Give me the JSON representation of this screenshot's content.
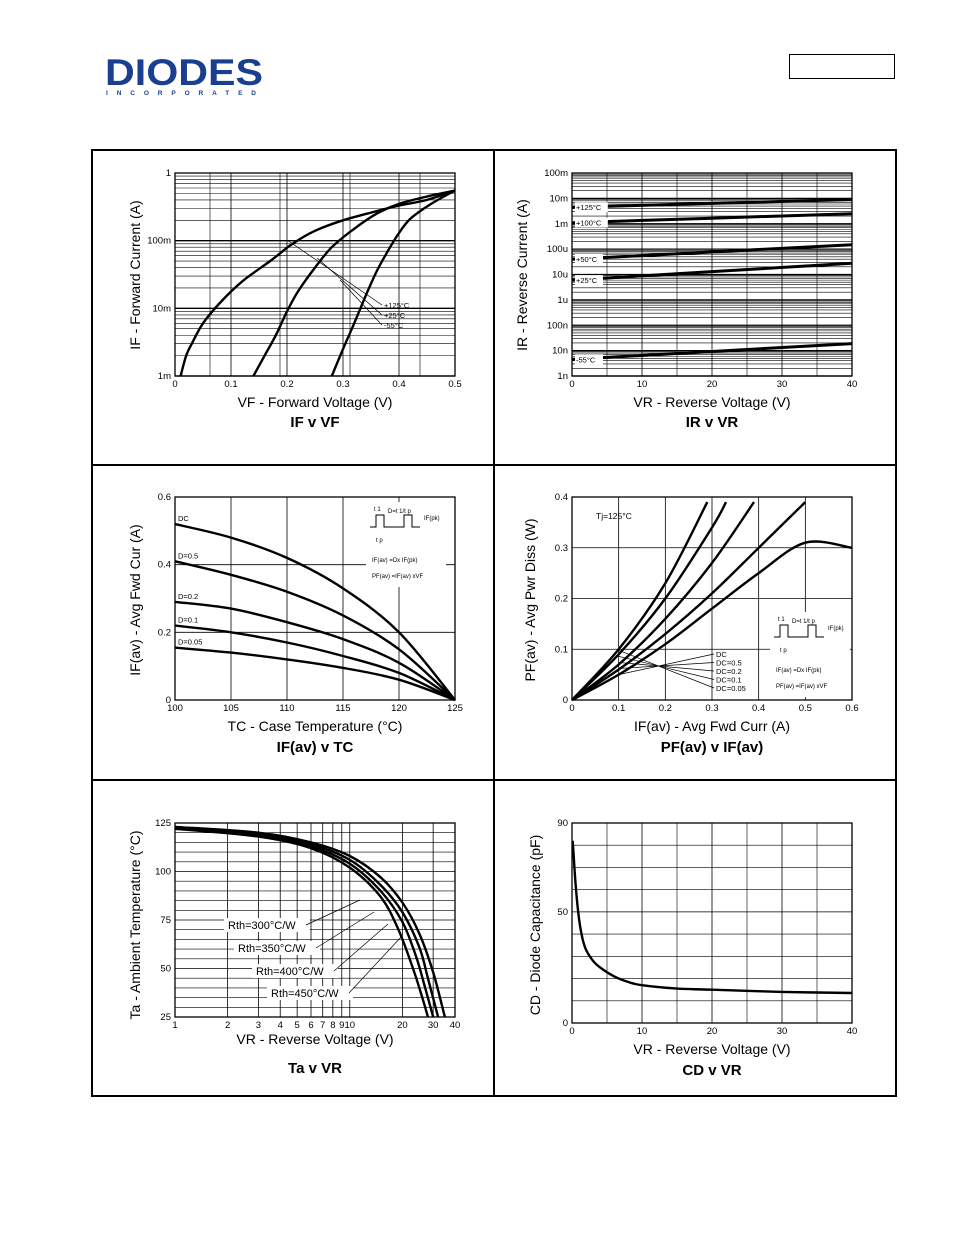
{
  "logo": {
    "brand": "DIODES",
    "sub": "INCORPORATED"
  },
  "colors": {
    "ink": "#000000",
    "brand": "#1b3f8f"
  },
  "chart_data": [
    {
      "type": "line",
      "id": "if_vf",
      "xlabel": "VF - Forward Voltage (V)",
      "ylabel": "IF - Forward Current (A)",
      "caption": "IF v VF",
      "xscale": "linear",
      "yscale": "log",
      "xlim": [
        0,
        0.5
      ],
      "ylim": [
        0.001,
        1
      ],
      "xticks": [
        0,
        0.1,
        0.2,
        0.3,
        0.4,
        0.5
      ],
      "xtick_labels": [
        "0",
        "0.1",
        "0.2",
        "0.3",
        "0.4",
        "0.5"
      ],
      "yticks": [
        0.001,
        0.01,
        0.1,
        1
      ],
      "ytick_labels": [
        "1m",
        "10m",
        "100m",
        "1"
      ],
      "legend_labels": [
        "+125°C",
        "+25°C",
        "-55°C"
      ],
      "series": [
        {
          "name": "+125°C",
          "points": [
            [
              0.01,
              0.001
            ],
            [
              0.02,
              0.002
            ],
            [
              0.03,
              0.003
            ],
            [
              0.05,
              0.006
            ],
            [
              0.08,
              0.012
            ],
            [
              0.12,
              0.025
            ],
            [
              0.17,
              0.05
            ],
            [
              0.21,
              0.09
            ],
            [
              0.25,
              0.14
            ],
            [
              0.3,
              0.2
            ],
            [
              0.35,
              0.26
            ],
            [
              0.4,
              0.33
            ],
            [
              0.45,
              0.4
            ],
            [
              0.5,
              0.55
            ]
          ]
        },
        {
          "name": "+25°C",
          "points": [
            [
              0.14,
              0.001
            ],
            [
              0.16,
              0.002
            ],
            [
              0.18,
              0.004
            ],
            [
              0.2,
              0.009
            ],
            [
              0.22,
              0.018
            ],
            [
              0.25,
              0.04
            ],
            [
              0.28,
              0.08
            ],
            [
              0.32,
              0.15
            ],
            [
              0.36,
              0.25
            ],
            [
              0.4,
              0.35
            ],
            [
              0.45,
              0.45
            ],
            [
              0.5,
              0.55
            ]
          ]
        },
        {
          "name": "-55°C",
          "points": [
            [
              0.28,
              0.001
            ],
            [
              0.3,
              0.0025
            ],
            [
              0.32,
              0.006
            ],
            [
              0.34,
              0.015
            ],
            [
              0.36,
              0.035
            ],
            [
              0.38,
              0.07
            ],
            [
              0.4,
              0.13
            ],
            [
              0.42,
              0.21
            ],
            [
              0.45,
              0.32
            ],
            [
              0.48,
              0.45
            ],
            [
              0.5,
              0.55
            ]
          ]
        }
      ]
    },
    {
      "type": "line",
      "id": "ir_vr",
      "xlabel": "VR - Reverse Voltage (V)",
      "ylabel": "IR - Reverse Current (A)",
      "caption": "IR v VR",
      "xscale": "linear",
      "yscale": "log",
      "xlim": [
        0,
        40
      ],
      "ylim": [
        1e-09,
        0.1
      ],
      "xticks": [
        0,
        10,
        20,
        30,
        40
      ],
      "xtick_labels": [
        "0",
        "10",
        "20",
        "30",
        "40"
      ],
      "yticks": [
        1e-09,
        1e-08,
        1e-07,
        1e-06,
        1e-05,
        0.0001,
        0.001,
        0.01,
        0.1
      ],
      "ytick_labels": [
        "1n",
        "10n",
        "100n",
        "1u",
        "10u",
        "100u",
        "1m",
        "10m",
        "100m"
      ],
      "series": [
        {
          "name": "+125°C",
          "points": [
            [
              0,
              0.0045
            ],
            [
              40,
              0.009
            ]
          ]
        },
        {
          "name": "+100°C",
          "points": [
            [
              0,
              0.0011
            ],
            [
              40,
              0.0025
            ]
          ]
        },
        {
          "name": "+50°C",
          "points": [
            [
              0,
              4e-05
            ],
            [
              40,
              0.00015
            ]
          ]
        },
        {
          "name": "+25°C",
          "points": [
            [
              0,
              6e-06
            ],
            [
              40,
              2.8e-05
            ]
          ]
        },
        {
          "name": "-55°C",
          "points": [
            [
              0,
              4.5e-09
            ],
            [
              40,
              1.9e-08
            ]
          ]
        }
      ]
    },
    {
      "type": "line",
      "id": "ifav_tc",
      "xlabel": "TC - Case Temperature (°C)",
      "ylabel": "IF(av) - Avg Fwd Cur (A)",
      "caption": "IF(av) v TC",
      "xlim": [
        100,
        125
      ],
      "ylim": [
        0,
        0.6
      ],
      "xticks": [
        100,
        105,
        110,
        115,
        120,
        125
      ],
      "xtick_labels": [
        "100",
        "105",
        "110",
        "115",
        "120",
        "125"
      ],
      "yticks": [
        0,
        0.2,
        0.4,
        0.6
      ],
      "ytick_labels": [
        "0",
        "0.2",
        "0.4",
        "0.6"
      ],
      "inset": {
        "t1": "t 1",
        "d": "D=t 1/t p",
        "ipk": "IF(pk)",
        "tp": "t p",
        "eq1": "IF(av) =Dx IF(pk)",
        "eq2": "PF(av) =IF(av) xVF"
      },
      "series": [
        {
          "name": "DC",
          "points": [
            [
              100,
              0.52
            ],
            [
              105,
              0.48
            ],
            [
              110,
              0.42
            ],
            [
              115,
              0.33
            ],
            [
              120,
              0.2
            ],
            [
              125,
              0
            ]
          ]
        },
        {
          "name": "D=0.5",
          "points": [
            [
              100,
              0.41
            ],
            [
              105,
              0.37
            ],
            [
              110,
              0.32
            ],
            [
              115,
              0.25
            ],
            [
              120,
              0.15
            ],
            [
              125,
              0
            ]
          ]
        },
        {
          "name": "D=0.2",
          "points": [
            [
              100,
              0.29
            ],
            [
              105,
              0.27
            ],
            [
              110,
              0.23
            ],
            [
              115,
              0.18
            ],
            [
              120,
              0.11
            ],
            [
              125,
              0
            ]
          ]
        },
        {
          "name": "D=0.1",
          "points": [
            [
              100,
              0.22
            ],
            [
              105,
              0.2
            ],
            [
              110,
              0.17
            ],
            [
              115,
              0.13
            ],
            [
              120,
              0.08
            ],
            [
              125,
              0
            ]
          ]
        },
        {
          "name": "D=0.05",
          "points": [
            [
              100,
              0.155
            ],
            [
              105,
              0.14
            ],
            [
              110,
              0.12
            ],
            [
              115,
              0.095
            ],
            [
              120,
              0.06
            ],
            [
              125,
              0
            ]
          ]
        }
      ]
    },
    {
      "type": "line",
      "id": "pfav_ifav",
      "xlabel": "IF(av) - Avg Fwd Curr (A)",
      "ylabel": "PF(av) - Avg Pwr Diss (W)",
      "caption": "PF(av) v IF(av)",
      "annotation": "Tj=125°C",
      "xlim": [
        0,
        0.6
      ],
      "ylim": [
        0,
        0.4
      ],
      "xticks": [
        0,
        0.1,
        0.2,
        0.3,
        0.4,
        0.5,
        0.6
      ],
      "xtick_labels": [
        "0",
        "0.1",
        "0.2",
        "0.3",
        "0.4",
        "0.5",
        "0.6"
      ],
      "yticks": [
        0,
        0.1,
        0.2,
        0.3,
        0.4
      ],
      "ytick_labels": [
        "0",
        "0.1",
        "0.2",
        "0.3",
        "0.4"
      ],
      "inset": {
        "t1": "t 1",
        "d": "D=t 1/t p",
        "ipk": "IF(pk)",
        "tp": "t p",
        "eq1": "IF(av) =Dx IF(pk)",
        "eq2": "PF(av) =IF(av) xVF"
      },
      "series": [
        {
          "name": "DC",
          "points": [
            [
              0,
              0
            ],
            [
              0.1,
              0.05
            ],
            [
              0.2,
              0.11
            ],
            [
              0.3,
              0.18
            ],
            [
              0.4,
              0.25
            ],
            [
              0.5,
              0.31
            ],
            [
              0.6,
              0.3
            ]
          ]
        },
        {
          "name": "DC=0.5",
          "points": [
            [
              0,
              0
            ],
            [
              0.1,
              0.06
            ],
            [
              0.2,
              0.13
            ],
            [
              0.3,
              0.21
            ],
            [
              0.4,
              0.3
            ],
            [
              0.5,
              0.39
            ]
          ]
        },
        {
          "name": "DC=0.2",
          "points": [
            [
              0,
              0
            ],
            [
              0.1,
              0.07
            ],
            [
              0.2,
              0.16
            ],
            [
              0.3,
              0.27
            ],
            [
              0.39,
              0.39
            ]
          ]
        },
        {
          "name": "DC=0.1",
          "points": [
            [
              0,
              0
            ],
            [
              0.1,
              0.09
            ],
            [
              0.2,
              0.2
            ],
            [
              0.3,
              0.34
            ],
            [
              0.33,
              0.39
            ]
          ]
        },
        {
          "name": "DC=0.05",
          "points": [
            [
              0,
              0
            ],
            [
              0.1,
              0.1
            ],
            [
              0.2,
              0.23
            ],
            [
              0.29,
              0.39
            ]
          ]
        }
      ]
    },
    {
      "type": "line",
      "id": "ta_vr",
      "xlabel": "VR - Reverse Voltage (V)",
      "ylabel": "Ta - Ambient Temperature (°C)",
      "caption": "Ta v VR",
      "xscale": "log",
      "xlim": [
        1,
        40
      ],
      "ylim": [
        25,
        125
      ],
      "xticks": [
        1,
        2,
        3,
        4,
        5,
        6,
        7,
        8,
        9,
        10,
        20,
        30,
        40
      ],
      "xtick_labels": [
        "1",
        "2",
        "3",
        "4",
        "5",
        "6",
        "7",
        "8",
        "9",
        "10",
        "20",
        "30",
        "40"
      ],
      "yticks": [
        25,
        50,
        75,
        100,
        125
      ],
      "ytick_labels": [
        "25",
        "50",
        "75",
        "100",
        "125"
      ],
      "series": [
        {
          "name": "Rth=300°C/W",
          "points": [
            [
              1,
              123
            ],
            [
              3,
              120
            ],
            [
              6,
              115
            ],
            [
              10,
              108
            ],
            [
              15,
              97
            ],
            [
              20,
              84
            ],
            [
              25,
              68
            ],
            [
              30,
              48
            ],
            [
              35,
              25
            ]
          ]
        },
        {
          "name": "Rth=350°C/W",
          "points": [
            [
              1,
              123
            ],
            [
              3,
              119
            ],
            [
              6,
              114
            ],
            [
              10,
              106
            ],
            [
              15,
              93
            ],
            [
              20,
              79
            ],
            [
              25,
              61
            ],
            [
              28,
              45
            ],
            [
              32,
              25
            ]
          ]
        },
        {
          "name": "Rth=400°C/W",
          "points": [
            [
              1,
              123
            ],
            [
              3,
              119
            ],
            [
              6,
              113
            ],
            [
              10,
              104
            ],
            [
              15,
              90
            ],
            [
              20,
              74
            ],
            [
              24,
              56
            ],
            [
              27,
              40
            ],
            [
              30,
              25
            ]
          ]
        },
        {
          "name": "Rth=450°C/W",
          "points": [
            [
              1,
              122
            ],
            [
              3,
              118
            ],
            [
              6,
              112
            ],
            [
              10,
              102
            ],
            [
              15,
              87
            ],
            [
              19,
              70
            ],
            [
              23,
              50
            ],
            [
              26,
              35
            ],
            [
              28,
              25
            ]
          ]
        }
      ]
    },
    {
      "type": "line",
      "id": "cd_vr",
      "xlabel": "VR - Reverse Voltage (V)",
      "ylabel": "CD - Diode Capacitance (pF)",
      "caption": "CD v VR",
      "xlim": [
        0,
        40
      ],
      "ylim": [
        0,
        90
      ],
      "xticks": [
        0,
        10,
        20,
        30,
        40
      ],
      "xtick_labels": [
        "0",
        "10",
        "20",
        "30",
        "40"
      ],
      "yticks": [
        0,
        50,
        90
      ],
      "ytick_labels": [
        "0",
        "50",
        "90"
      ],
      "series": [
        {
          "name": "CD",
          "points": [
            [
              0.1,
              82
            ],
            [
              0.5,
              63
            ],
            [
              1,
              47
            ],
            [
              1.5,
              38
            ],
            [
              2,
              33
            ],
            [
              3,
              28
            ],
            [
              4,
              25
            ],
            [
              6,
              21
            ],
            [
              8,
              18.5
            ],
            [
              10,
              17
            ],
            [
              15,
              15.5
            ],
            [
              20,
              15
            ],
            [
              30,
              14
            ],
            [
              40,
              13.5
            ]
          ]
        }
      ]
    }
  ]
}
